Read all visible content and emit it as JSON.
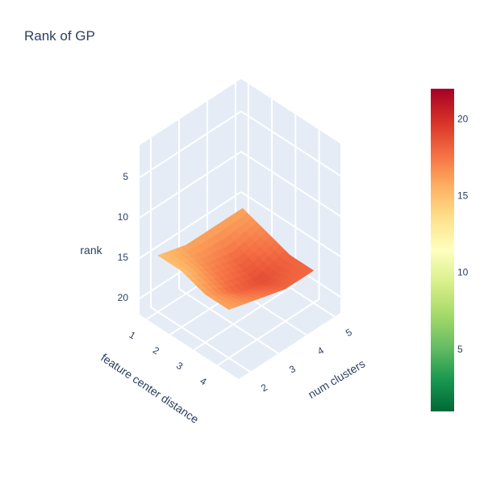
{
  "chart_data": {
    "type": "surface",
    "title": "Rank of GP",
    "x": {
      "label": "num clusters",
      "ticks": [
        2,
        3,
        4,
        5
      ],
      "range": [
        1.6,
        5.2
      ]
    },
    "y": {
      "label": "feature center distance",
      "ticks": [
        1,
        2,
        3,
        4
      ],
      "range": [
        0.7,
        4.9
      ]
    },
    "z": {
      "label": "rank",
      "ticks": [
        5,
        10,
        15,
        20
      ],
      "range": [
        1,
        22
      ],
      "reversed": true
    },
    "surface": {
      "x": [
        2,
        3,
        4,
        5
      ],
      "y": [
        1,
        2,
        3,
        4
      ],
      "z": [
        [
          15,
          16,
          16,
          16
        ],
        [
          15,
          17,
          18,
          17
        ],
        [
          16,
          18,
          19,
          18
        ],
        [
          16,
          17,
          18,
          18
        ]
      ]
    },
    "colorscale": {
      "name": "RdYlGn reversed",
      "min": 1,
      "max": 22,
      "ticks": [
        5,
        10,
        15,
        20
      ],
      "stops": [
        "#006837",
        "#1a9850",
        "#66bd63",
        "#a6d96a",
        "#d9ef8b",
        "#ffffbf",
        "#fee08b",
        "#fdae61",
        "#f46d43",
        "#d73027",
        "#a50026"
      ]
    },
    "colors": {
      "pane": "#e5ecf6",
      "grid": "#ffffff",
      "text": "#2a3f5f"
    }
  }
}
